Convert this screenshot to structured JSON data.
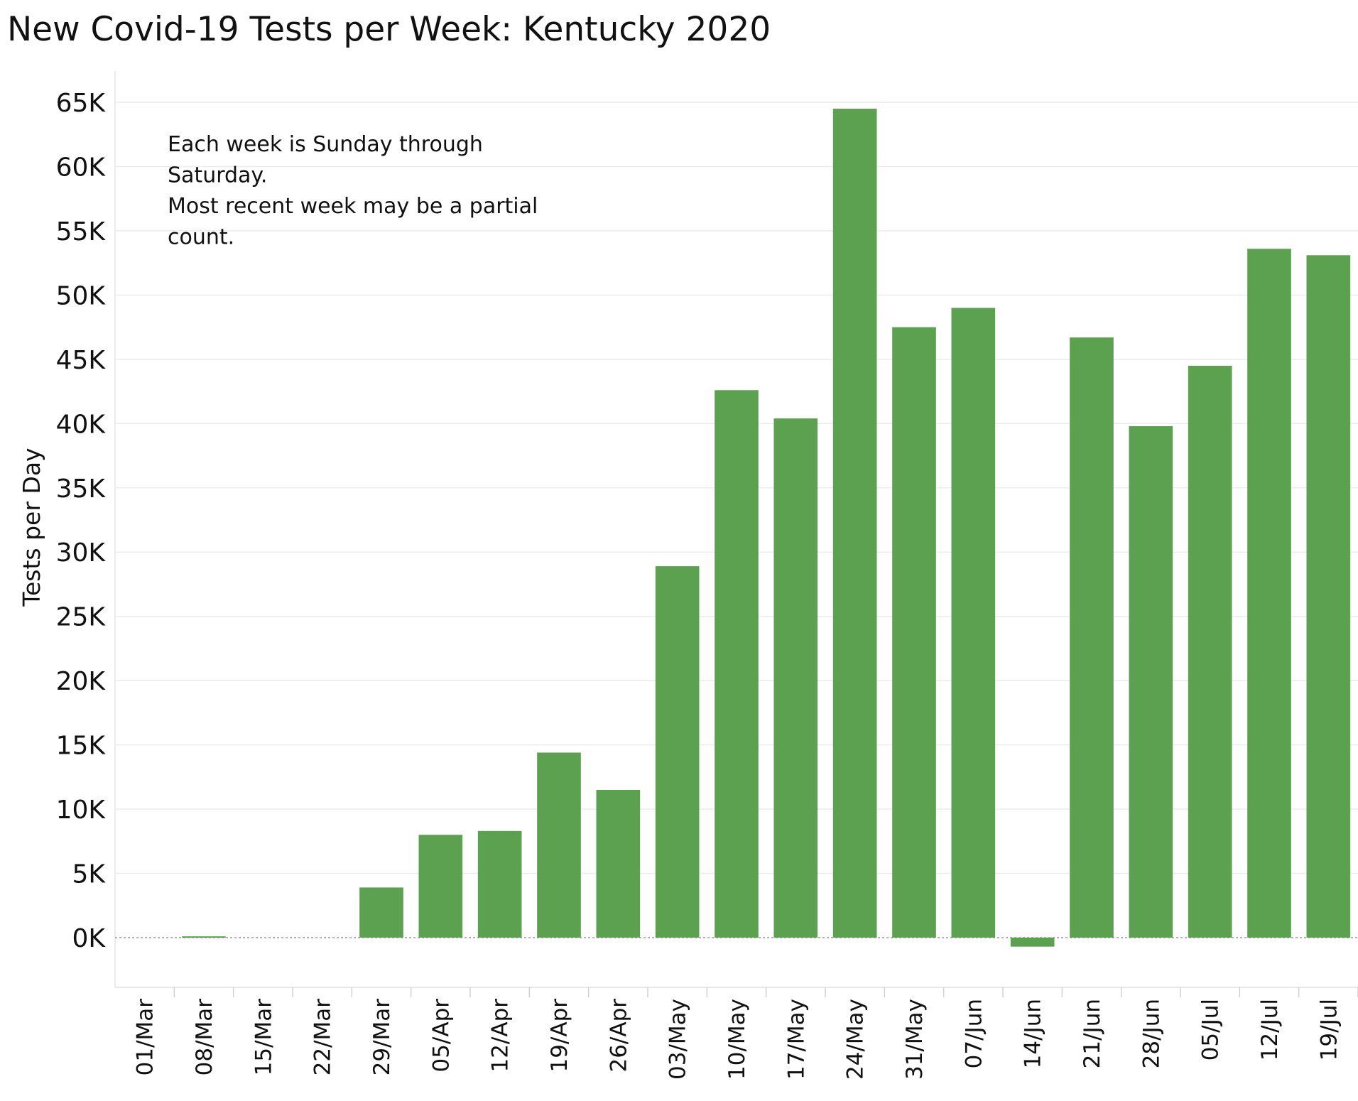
{
  "chart_data": {
    "type": "bar",
    "title": "New Covid-19 Tests per Week:  Kentucky 2020",
    "ylabel": "Tests per Day",
    "xlabel": "",
    "ylim": [
      -4000,
      66000
    ],
    "y_ticks": [
      {
        "value": 0,
        "label": "0K"
      },
      {
        "value": 5000,
        "label": "5K"
      },
      {
        "value": 10000,
        "label": "10K"
      },
      {
        "value": 15000,
        "label": "15K"
      },
      {
        "value": 20000,
        "label": "20K"
      },
      {
        "value": 25000,
        "label": "25K"
      },
      {
        "value": 30000,
        "label": "30K"
      },
      {
        "value": 35000,
        "label": "35K"
      },
      {
        "value": 40000,
        "label": "40K"
      },
      {
        "value": 45000,
        "label": "45K"
      },
      {
        "value": 50000,
        "label": "50K"
      },
      {
        "value": 55000,
        "label": "55K"
      },
      {
        "value": 60000,
        "label": "60K"
      },
      {
        "value": 65000,
        "label": "65K"
      }
    ],
    "categories": [
      "01/Mar",
      "08/Mar",
      "15/Mar",
      "22/Mar",
      "29/Mar",
      "05/Apr",
      "12/Apr",
      "19/Apr",
      "26/Apr",
      "03/May",
      "10/May",
      "17/May",
      "24/May",
      "31/May",
      "07/Jun",
      "14/Jun",
      "21/Jun",
      "28/Jun",
      "05/Jul",
      "12/Jul",
      "19/Jul"
    ],
    "values": [
      0,
      100,
      0,
      0,
      3900,
      8000,
      8300,
      14400,
      11500,
      28900,
      42600,
      40400,
      64500,
      47500,
      49000,
      -700,
      46700,
      39800,
      44500,
      53600,
      53100
    ],
    "bar_color": "#5ba150",
    "grid": true,
    "annotation": [
      "Each week is Sunday through",
      "Saturday.",
      "Most recent week may be a partial",
      "count."
    ]
  }
}
